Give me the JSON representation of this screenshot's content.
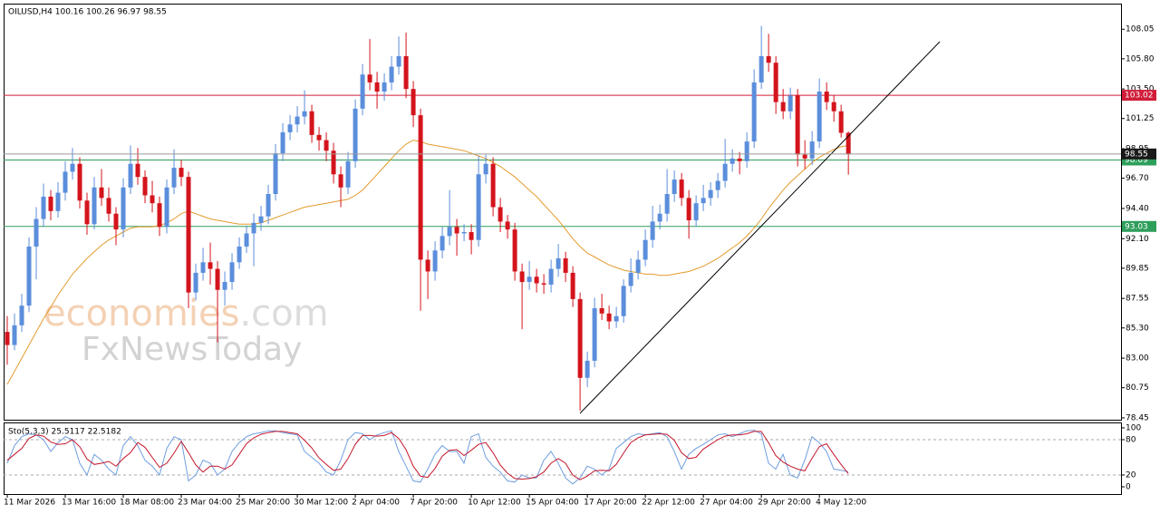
{
  "chart_data": [
    {
      "type": "candlestick",
      "title": "OILUSD,H4  100.16 100.26 96.97 98.55",
      "watermark": [
        "economies",
        ".com",
        "FxNewsToday"
      ],
      "up_color": "#5b8edb",
      "down_color": "#d4141c",
      "xlim": [
        -0.5,
        153.6
      ],
      "ylim": [
        78.31,
        110.0
      ],
      "yticks": [
        108.05,
        {
          "value": 105.8,
          "label": "105.80"
        },
        {
          "value": 103.5,
          "label": "103.50"
        },
        101.25,
        98.95,
        {
          "value": 96.7,
          "label": "96.70"
        },
        {
          "value": 94.4,
          "label": "94.40"
        },
        {
          "value": 92.1,
          "label": "92.10"
        },
        89.85,
        87.55,
        {
          "value": 85.3,
          "label": "85.30"
        },
        {
          "value": 83.0,
          "label": "83.00"
        },
        80.75,
        78.45
      ],
      "xticks": [
        {
          "value": 0,
          "label": "11 Mar 2026"
        },
        {
          "value": 8,
          "label": "13 Mar 16:00"
        },
        {
          "value": 16,
          "label": "18 Mar 08:00"
        },
        {
          "value": 24,
          "label": "23 Mar 04:00"
        },
        {
          "value": 32,
          "label": "25 Mar 20:00"
        },
        {
          "value": 40,
          "label": "30 Mar 12:00"
        },
        {
          "value": 48,
          "label": "2 Apr 04:00"
        },
        {
          "value": 56,
          "label": "7 Apr 20:00"
        },
        {
          "value": 64,
          "label": "10 Apr 12:00"
        },
        {
          "value": 72,
          "label": "15 Apr 04:00"
        },
        {
          "value": 80,
          "label": "17 Apr 20:00"
        },
        {
          "value": 88,
          "label": "22 Apr 12:00"
        },
        {
          "value": 96,
          "label": "27 Apr 04:00"
        },
        {
          "value": 104,
          "label": "29 Apr 20:00"
        },
        {
          "value": 112,
          "label": "4 May 12:00"
        }
      ],
      "levels": [
        {
          "value": 103.02,
          "color": "#d11d3a"
        },
        {
          "value": 98.09,
          "color": "#2e9e5b"
        },
        {
          "value": 93.03,
          "color": "#2e9e5b"
        }
      ],
      "trendline": {
        "x": [
          79,
          128.6
        ],
        "y": [
          78.8,
          107.1
        ],
        "color": "#000000"
      },
      "ma": {
        "color": "#e39b2e",
        "values": [
          81.0,
          82.0,
          83.0,
          84.0,
          85.0,
          86.0,
          86.9,
          87.8,
          88.6,
          89.4,
          90.0,
          90.6,
          91.1,
          91.6,
          92.0,
          92.3,
          92.6,
          92.9,
          93.0,
          93.0,
          93.0,
          93.1,
          93.3,
          93.6,
          94.0,
          94.2,
          94.0,
          93.8,
          93.6,
          93.5,
          93.4,
          93.3,
          93.2,
          93.2,
          93.2,
          93.3,
          93.5,
          93.7,
          93.9,
          94.1,
          94.3,
          94.5,
          94.6,
          94.7,
          94.8,
          94.9,
          95.0,
          95.1,
          95.4,
          95.8,
          96.4,
          97.0,
          97.6,
          98.2,
          98.8,
          99.3,
          99.6,
          99.5,
          99.3,
          99.2,
          99.1,
          99.0,
          98.9,
          98.8,
          98.6,
          98.4,
          98.2,
          97.9,
          97.6,
          97.2,
          96.8,
          96.3,
          95.8,
          95.3,
          94.7,
          94.1,
          93.5,
          92.8,
          92.1,
          91.5,
          91.0,
          90.7,
          90.4,
          90.1,
          89.9,
          89.7,
          89.6,
          89.5,
          89.4,
          89.4,
          89.3,
          89.3,
          89.4,
          89.5,
          89.6,
          89.8,
          90.0,
          90.3,
          90.6,
          91.0,
          91.4,
          91.8,
          92.3,
          92.9,
          93.6,
          94.4,
          95.1,
          95.8,
          96.4,
          96.9,
          97.4,
          97.9,
          98.3,
          98.6,
          98.9,
          99.1,
          99.2
        ]
      },
      "candles": [
        [
          85.0,
          86.2,
          82.5,
          84.0
        ],
        [
          84.0,
          86.4,
          83.6,
          85.5
        ],
        [
          85.5,
          87.9,
          85.0,
          87.0
        ],
        [
          87.0,
          92.2,
          86.5,
          91.5
        ],
        [
          91.5,
          94.5,
          89.0,
          93.6
        ],
        [
          93.6,
          96.3,
          93.0,
          95.3
        ],
        [
          95.3,
          95.8,
          93.5,
          94.2
        ],
        [
          94.2,
          96.4,
          93.7,
          95.6
        ],
        [
          95.6,
          98.0,
          95.0,
          97.2
        ],
        [
          97.2,
          99.0,
          96.6,
          97.8
        ],
        [
          97.8,
          98.3,
          94.4,
          95.0
        ],
        [
          95.0,
          95.6,
          92.4,
          93.2
        ],
        [
          93.2,
          96.8,
          92.8,
          96.0
        ],
        [
          96.0,
          97.4,
          94.6,
          95.2
        ],
        [
          95.2,
          96.0,
          93.4,
          94.0
        ],
        [
          94.0,
          94.5,
          91.6,
          92.8
        ],
        [
          92.8,
          96.7,
          92.2,
          96.0
        ],
        [
          96.0,
          99.2,
          95.5,
          97.8
        ],
        [
          97.8,
          99.0,
          96.2,
          96.8
        ],
        [
          96.8,
          97.3,
          94.8,
          95.4
        ],
        [
          95.4,
          96.5,
          94.1,
          94.8
        ],
        [
          94.8,
          95.3,
          92.3,
          93.0
        ],
        [
          93.0,
          96.6,
          92.5,
          96.0
        ],
        [
          96.0,
          98.9,
          95.5,
          97.5
        ],
        [
          97.5,
          98.1,
          96.1,
          96.8
        ],
        [
          96.8,
          97.2,
          86.8,
          88.0
        ],
        [
          88.0,
          90.2,
          87.4,
          89.5
        ],
        [
          89.5,
          91.4,
          88.9,
          90.3
        ],
        [
          90.3,
          91.8,
          88.6,
          89.8
        ],
        [
          89.8,
          90.4,
          84.2,
          88.2
        ],
        [
          88.2,
          89.6,
          87.0,
          88.8
        ],
        [
          88.8,
          91.0,
          88.2,
          90.3
        ],
        [
          90.3,
          92.2,
          89.8,
          91.5
        ],
        [
          91.5,
          93.1,
          91.0,
          92.5
        ],
        [
          92.5,
          94.0,
          90.0,
          93.3
        ],
        [
          93.3,
          94.6,
          92.7,
          93.8
        ],
        [
          93.8,
          96.2,
          93.2,
          95.5
        ],
        [
          95.5,
          99.3,
          95.0,
          98.6
        ],
        [
          98.6,
          100.9,
          98.0,
          100.2
        ],
        [
          100.2,
          101.5,
          99.6,
          100.8
        ],
        [
          100.8,
          102.2,
          100.2,
          101.4
        ],
        [
          101.4,
          103.4,
          100.8,
          101.8
        ],
        [
          101.8,
          102.3,
          99.4,
          100.0
        ],
        [
          100.0,
          100.6,
          98.8,
          99.6
        ],
        [
          99.6,
          100.2,
          98.0,
          98.8
        ],
        [
          98.8,
          99.4,
          96.3,
          97.0
        ],
        [
          97.0,
          97.6,
          94.5,
          96.0
        ],
        [
          96.0,
          98.7,
          95.5,
          98.0
        ],
        [
          98.0,
          102.7,
          97.5,
          102.0
        ],
        [
          102.0,
          105.4,
          101.5,
          104.6
        ],
        [
          104.6,
          107.3,
          103.4,
          104.0
        ],
        [
          104.0,
          104.8,
          102.0,
          103.3
        ],
        [
          103.3,
          104.7,
          102.6,
          104.0
        ],
        [
          104.0,
          106.0,
          103.4,
          105.2
        ],
        [
          105.2,
          107.5,
          104.6,
          106.0
        ],
        [
          106.0,
          107.8,
          102.8,
          103.5
        ],
        [
          103.5,
          104.1,
          100.6,
          101.5
        ],
        [
          101.5,
          102.0,
          86.6,
          90.5
        ],
        [
          90.5,
          91.2,
          87.5,
          89.6
        ],
        [
          89.6,
          91.9,
          88.9,
          91.2
        ],
        [
          91.2,
          93.0,
          90.6,
          92.3
        ],
        [
          92.3,
          95.8,
          91.6,
          93.0
        ],
        [
          93.0,
          93.6,
          90.8,
          92.5
        ],
        [
          92.5,
          93.2,
          91.9,
          92.6
        ],
        [
          92.6,
          93.2,
          90.9,
          92.0
        ],
        [
          92.0,
          98.4,
          91.5,
          97.0
        ],
        [
          97.0,
          98.5,
          96.3,
          97.8
        ],
        [
          97.8,
          98.3,
          93.8,
          94.5
        ],
        [
          94.5,
          95.2,
          92.6,
          93.4
        ],
        [
          93.4,
          93.9,
          92.1,
          92.8
        ],
        [
          92.8,
          93.3,
          88.9,
          89.6
        ],
        [
          89.6,
          90.2,
          85.2,
          88.8
        ],
        [
          88.8,
          90.4,
          88.2,
          89.2
        ],
        [
          89.2,
          89.8,
          88.0,
          88.7
        ],
        [
          88.7,
          89.4,
          87.9,
          88.6
        ],
        [
          88.6,
          90.5,
          88.0,
          89.8
        ],
        [
          89.8,
          91.7,
          89.2,
          90.6
        ],
        [
          90.6,
          91.1,
          88.8,
          89.5
        ],
        [
          89.5,
          90.0,
          86.9,
          87.5
        ],
        [
          87.5,
          88.0,
          79.0,
          81.5
        ],
        [
          81.5,
          83.5,
          80.8,
          82.8
        ],
        [
          82.8,
          87.6,
          82.3,
          86.8
        ],
        [
          86.8,
          87.9,
          85.9,
          86.4
        ],
        [
          86.4,
          87.0,
          85.2,
          85.8
        ],
        [
          85.8,
          86.9,
          85.3,
          86.2
        ],
        [
          86.2,
          89.0,
          85.7,
          88.5
        ],
        [
          88.5,
          90.6,
          88.0,
          89.5
        ],
        [
          89.5,
          91.2,
          89.0,
          90.5
        ],
        [
          90.5,
          92.8,
          90.0,
          92.0
        ],
        [
          92.0,
          94.6,
          91.4,
          93.4
        ],
        [
          93.4,
          94.7,
          92.8,
          94.0
        ],
        [
          94.0,
          97.4,
          93.4,
          95.5
        ],
        [
          95.5,
          97.3,
          94.9,
          96.6
        ],
        [
          96.6,
          97.1,
          94.6,
          95.2
        ],
        [
          95.2,
          95.8,
          92.1,
          93.5
        ],
        [
          93.5,
          95.4,
          93.0,
          94.8
        ],
        [
          94.8,
          96.2,
          94.2,
          95.2
        ],
        [
          95.2,
          96.4,
          94.6,
          95.8
        ],
        [
          95.8,
          97.1,
          95.2,
          96.5
        ],
        [
          96.5,
          99.7,
          96.0,
          97.8
        ],
        [
          97.8,
          98.9,
          97.2,
          98.2
        ],
        [
          98.2,
          98.7,
          97.0,
          98.0
        ],
        [
          98.0,
          100.2,
          97.5,
          99.5
        ],
        [
          99.5,
          105.0,
          99.0,
          104.0
        ],
        [
          104.0,
          108.3,
          103.5,
          106.0
        ],
        [
          106.0,
          107.7,
          104.8,
          105.5
        ],
        [
          105.5,
          106.0,
          101.6,
          102.5
        ],
        [
          102.5,
          103.5,
          101.2,
          101.8
        ],
        [
          101.8,
          103.6,
          101.2,
          103.0
        ],
        [
          103.0,
          103.5,
          97.6,
          98.5
        ],
        [
          98.5,
          99.6,
          97.4,
          98.2
        ],
        [
          98.2,
          100.3,
          97.7,
          99.5
        ],
        [
          99.5,
          104.3,
          99.0,
          103.3
        ],
        [
          103.3,
          104.0,
          101.9,
          102.5
        ],
        [
          102.5,
          103.0,
          101.0,
          101.8
        ],
        [
          101.8,
          102.3,
          99.8,
          100.16
        ],
        [
          100.16,
          100.26,
          96.97,
          98.55
        ]
      ]
    },
    {
      "type": "line",
      "title": "Sto(5,3,3) 25.5117 22.5182",
      "ylim": [
        -12.3,
        109.2
      ],
      "yticks": [
        100,
        80,
        20,
        0
      ],
      "level_lines": [
        80,
        20
      ],
      "series": [
        {
          "color": "#6f9fe0",
          "values": [
            40,
            70,
            85,
            90,
            88,
            80,
            60,
            75,
            85,
            80,
            40,
            20,
            55,
            45,
            30,
            20,
            70,
            85,
            70,
            45,
            35,
            20,
            65,
            85,
            80,
            10,
            20,
            45,
            40,
            20,
            30,
            60,
            75,
            85,
            90,
            92,
            95,
            95,
            92,
            90,
            88,
            60,
            50,
            40,
            25,
            20,
            45,
            80,
            92,
            90,
            80,
            88,
            92,
            95,
            60,
            35,
            10,
            8,
            30,
            55,
            70,
            60,
            60,
            40,
            85,
            90,
            50,
            35,
            25,
            10,
            8,
            20,
            15,
            15,
            45,
            60,
            40,
            15,
            5,
            15,
            35,
            30,
            20,
            30,
            65,
            75,
            85,
            90,
            88,
            90,
            92,
            85,
            60,
            30,
            55,
            65,
            72,
            80,
            88,
            90,
            85,
            90,
            95,
            96,
            90,
            40,
            30,
            55,
            20,
            15,
            45,
            85,
            75,
            60,
            30,
            28,
            25.5117
          ]
        },
        {
          "color": "#c4172c",
          "values": [
            45,
            55,
            65,
            82,
            88,
            86,
            76,
            72,
            73,
            80,
            68,
            47,
            38,
            40,
            43,
            35,
            48,
            58,
            75,
            67,
            50,
            33,
            40,
            57,
            77,
            58,
            37,
            25,
            35,
            35,
            30,
            37,
            55,
            73,
            83,
            89,
            92,
            94,
            94,
            92,
            90,
            79,
            66,
            49,
            38,
            28,
            30,
            48,
            72,
            87,
            87,
            86,
            87,
            92,
            82,
            63,
            35,
            18,
            16,
            31,
            52,
            62,
            63,
            53,
            62,
            72,
            75,
            58,
            37,
            23,
            14,
            13,
            14,
            17,
            25,
            40,
            48,
            40,
            20,
            12,
            18,
            27,
            28,
            27,
            38,
            57,
            75,
            83,
            88,
            89,
            90,
            89,
            79,
            58,
            48,
            50,
            64,
            72,
            80,
            86,
            88,
            88,
            90,
            94,
            94,
            75,
            53,
            42,
            35,
            30,
            27,
            48,
            68,
            73,
            55,
            38,
            22.5182
          ]
        }
      ]
    }
  ]
}
